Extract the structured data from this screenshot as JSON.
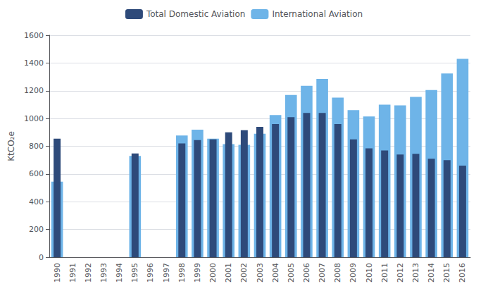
{
  "chart_data": {
    "type": "bar",
    "categories": [
      "1990",
      "1991",
      "1992",
      "1993",
      "1994",
      "1995",
      "1996",
      "1997",
      "1998",
      "1999",
      "2000",
      "2001",
      "2002",
      "2003",
      "2004",
      "2005",
      "2006",
      "2007",
      "2008",
      "2009",
      "2010",
      "2011",
      "2012",
      "2013",
      "2014",
      "2015",
      "2016"
    ],
    "series": [
      {
        "name": "Total Domestic Aviation",
        "color": "#2E4A7A",
        "values": [
          855,
          null,
          null,
          null,
          null,
          748,
          null,
          null,
          820,
          845,
          850,
          900,
          915,
          940,
          960,
          1010,
          1040,
          1040,
          960,
          850,
          785,
          770,
          740,
          745,
          710,
          700,
          660
        ]
      },
      {
        "name": "International Aviation",
        "color": "#6EB4E8",
        "values": [
          545,
          null,
          null,
          null,
          null,
          730,
          null,
          null,
          878,
          920,
          855,
          815,
          810,
          890,
          1025,
          1170,
          1235,
          1285,
          1150,
          1060,
          1015,
          1100,
          1095,
          1155,
          1205,
          1325,
          1430
        ]
      }
    ],
    "ylabel": "KtCO₂e",
    "ylim": [
      0,
      1600
    ],
    "yticks": [
      0,
      200,
      400,
      600,
      800,
      1000,
      1200,
      1400,
      1600
    ],
    "grid": true,
    "legend": "top"
  }
}
